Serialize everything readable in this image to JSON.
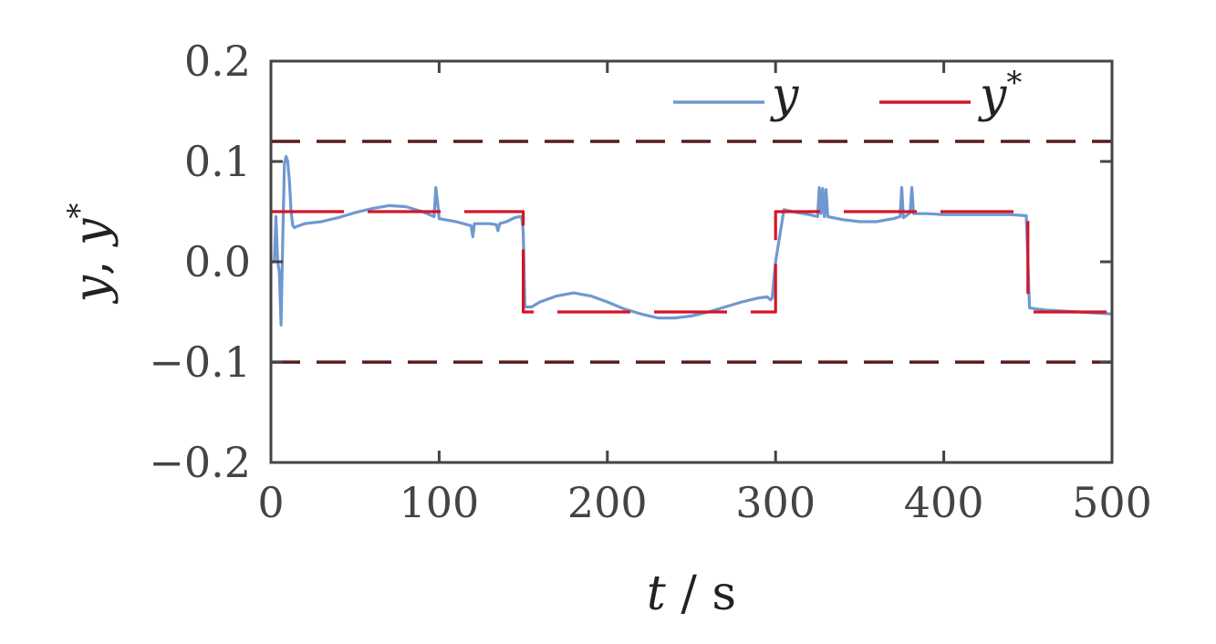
{
  "chart_data": {
    "type": "line",
    "title": "",
    "xlabel": {
      "var": "t",
      "sep": " / ",
      "unit": "s"
    },
    "ylabel": {
      "first": "y",
      "comma": ", ",
      "second": "y",
      "sup": "*"
    },
    "xlim": [
      0,
      500
    ],
    "ylim": [
      -0.2,
      0.2
    ],
    "xticks": [
      0,
      100,
      200,
      300,
      400,
      500
    ],
    "xtick_labels": [
      "0",
      "100",
      "200",
      "300",
      "400",
      "500"
    ],
    "yticks": [
      -0.2,
      -0.1,
      0.0,
      0.1,
      0.2
    ],
    "ytick_labels": [
      "−0.2",
      "−0.1",
      "0.0",
      "0.1",
      "0.2"
    ],
    "grid": false,
    "legend_position": "top-right",
    "legend": [
      {
        "series": "y",
        "label": "y",
        "sup": ""
      },
      {
        "series": "y_star",
        "label": "y",
        "sup": "*"
      }
    ],
    "bounds": [
      {
        "y": 0.12,
        "color": "#5a1a1a",
        "style": "dashed"
      },
      {
        "y": -0.1,
        "color": "#5a1a1a",
        "style": "dashed"
      }
    ],
    "series": [
      {
        "id": "y",
        "color": "#6f98d0",
        "style": "solid",
        "x": [
          0,
          2,
          3,
          4,
          5,
          6,
          7,
          8,
          9,
          10,
          11,
          12,
          13,
          14,
          15,
          20,
          30,
          40,
          50,
          60,
          70,
          80,
          90,
          97,
          98,
          99,
          100,
          110,
          119,
          120,
          121,
          125,
          130,
          134,
          135,
          136,
          140,
          145,
          148,
          149,
          150,
          151,
          155,
          160,
          170,
          180,
          190,
          200,
          210,
          220,
          230,
          240,
          250,
          260,
          270,
          280,
          290,
          295,
          297,
          298,
          300,
          305,
          310,
          320,
          325,
          326,
          327,
          328,
          329,
          330,
          331,
          340,
          350,
          360,
          370,
          374,
          375,
          376,
          377,
          380,
          381,
          382,
          385,
          390,
          400,
          410,
          420,
          430,
          440,
          448,
          449,
          450,
          451,
          455,
          460,
          470,
          480,
          490,
          500
        ],
        "y": [
          0.0,
          0.0,
          0.045,
          0.0,
          -0.01,
          -0.063,
          0.02,
          0.098,
          0.105,
          0.1,
          0.08,
          0.05,
          0.036,
          0.034,
          0.035,
          0.038,
          0.04,
          0.044,
          0.049,
          0.053,
          0.056,
          0.055,
          0.05,
          0.045,
          0.074,
          0.06,
          0.043,
          0.04,
          0.036,
          0.025,
          0.038,
          0.038,
          0.038,
          0.037,
          0.031,
          0.038,
          0.04,
          0.044,
          0.045,
          0.045,
          0.03,
          -0.045,
          -0.045,
          -0.04,
          -0.034,
          -0.031,
          -0.034,
          -0.04,
          -0.047,
          -0.052,
          -0.056,
          -0.056,
          -0.054,
          -0.05,
          -0.045,
          -0.04,
          -0.036,
          -0.035,
          -0.038,
          -0.036,
          0.0,
          0.052,
          0.05,
          0.047,
          0.045,
          0.074,
          0.048,
          0.073,
          0.045,
          0.072,
          0.045,
          0.042,
          0.04,
          0.04,
          0.043,
          0.045,
          0.074,
          0.044,
          0.045,
          0.049,
          0.074,
          0.048,
          0.048,
          0.048,
          0.047,
          0.047,
          0.047,
          0.047,
          0.047,
          0.046,
          0.046,
          0.0,
          -0.046,
          -0.047,
          -0.048,
          -0.049,
          -0.05,
          -0.051,
          -0.052
        ]
      },
      {
        "id": "y_star",
        "color": "#d41528",
        "style": "dashed",
        "x": [
          0,
          150,
          150,
          300,
          300,
          450,
          450,
          500
        ],
        "y": [
          0.05,
          0.05,
          -0.05,
          -0.05,
          0.05,
          0.05,
          -0.05,
          -0.05
        ]
      }
    ]
  }
}
